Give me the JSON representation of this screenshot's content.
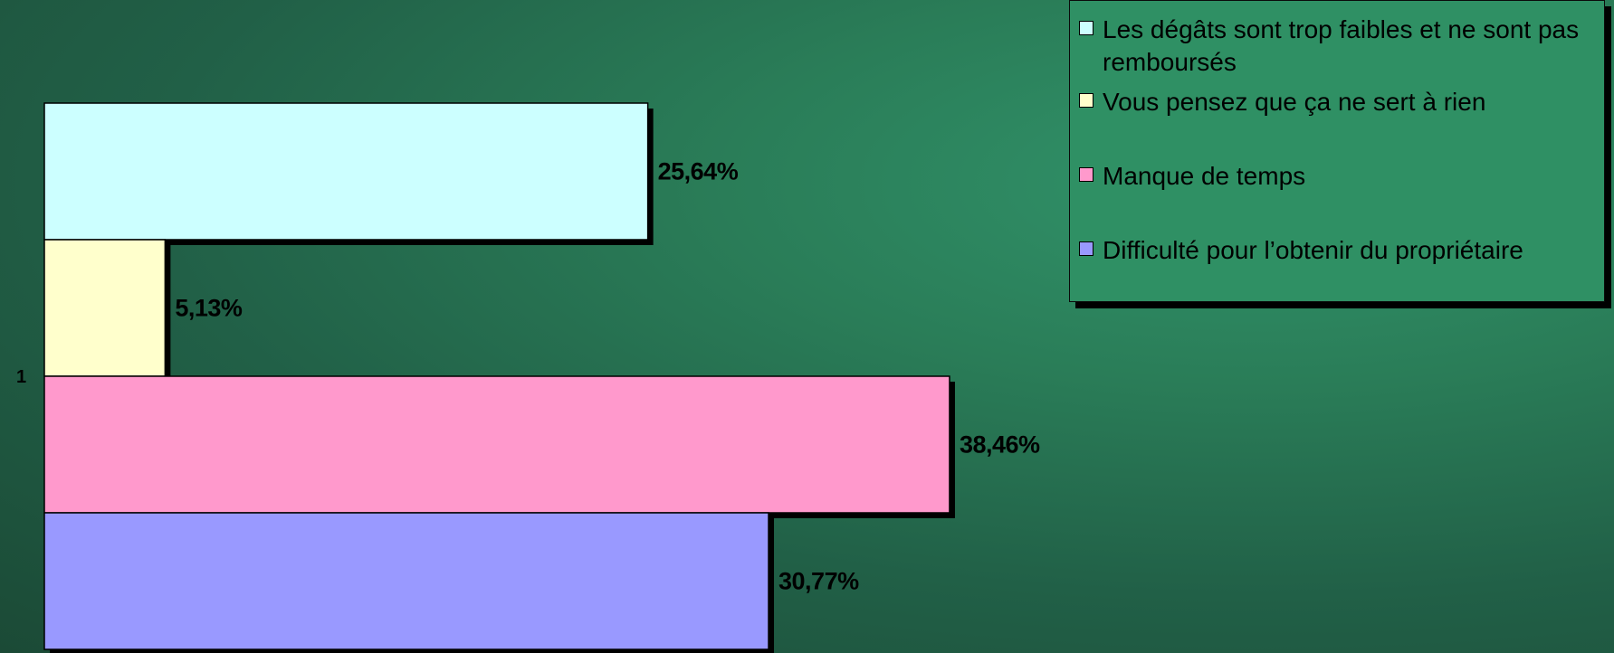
{
  "chart_data": {
    "type": "bar",
    "orientation": "horizontal",
    "categories": [
      "1"
    ],
    "series": [
      {
        "name": "Les dégâts sont trop faibles et ne sont pas remboursés",
        "values": [
          25.64
        ],
        "label": "25,64%",
        "color": "#ccffff"
      },
      {
        "name": "Vous pensez que ça ne sert à rien",
        "values": [
          5.13
        ],
        "label": "5,13%",
        "color": "#ffffcc"
      },
      {
        "name": "Manque de temps",
        "values": [
          38.46
        ],
        "label": "38,46%",
        "color": "#ff99cc"
      },
      {
        "name": "Difficulté pour l’obtenir du propriétaire",
        "values": [
          30.77
        ],
        "label": "30,77%",
        "color": "#9999ff"
      }
    ],
    "xlim": [
      0,
      40
    ],
    "legend": "top-right",
    "grid": false,
    "title": "",
    "xlabel": "",
    "ylabel": ""
  }
}
